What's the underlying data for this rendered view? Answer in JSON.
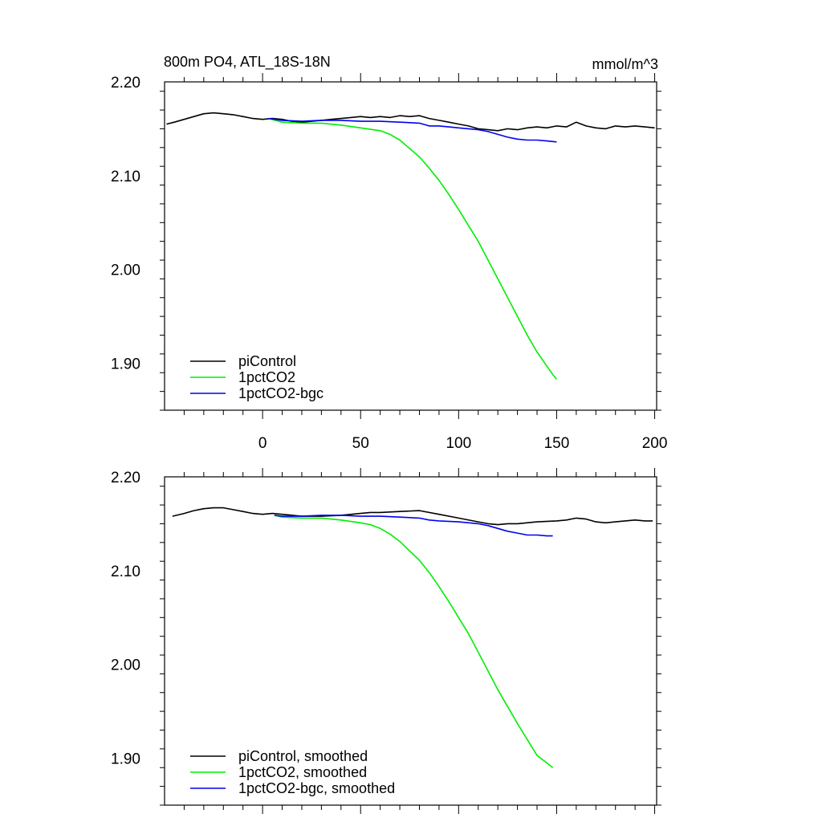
{
  "chart_data": [
    {
      "type": "line",
      "title": "800m PO4, ATL_18S-18N",
      "units": "mmol/m^3",
      "xlim": [
        -50,
        201
      ],
      "ylim": [
        1.85,
        2.2
      ],
      "x_ticks": [
        "0",
        "50",
        "100",
        "150",
        "200"
      ],
      "x_tick_values": [
        0,
        50,
        100,
        150,
        200
      ],
      "y_ticks": [
        "2.20",
        "2.10",
        "2.00",
        "1.90"
      ],
      "y_tick_values": [
        2.2,
        2.1,
        2.0,
        1.9
      ],
      "legend_position": "bottom-left",
      "series": [
        {
          "name": "piControl",
          "color": "#000000",
          "x": [
            -49,
            -45,
            -40,
            -35,
            -30,
            -25,
            -20,
            -15,
            -10,
            -5,
            0,
            5,
            10,
            15,
            20,
            25,
            30,
            35,
            40,
            45,
            50,
            55,
            60,
            65,
            70,
            75,
            80,
            85,
            90,
            95,
            100,
            105,
            110,
            115,
            120,
            125,
            130,
            135,
            140,
            145,
            150,
            155,
            160,
            165,
            170,
            175,
            180,
            185,
            190,
            195,
            200
          ],
          "y": [
            2.155,
            2.157,
            2.16,
            2.163,
            2.166,
            2.167,
            2.166,
            2.165,
            2.163,
            2.161,
            2.16,
            2.161,
            2.16,
            2.158,
            2.157,
            2.158,
            2.159,
            2.16,
            2.161,
            2.162,
            2.163,
            2.162,
            2.163,
            2.162,
            2.164,
            2.163,
            2.164,
            2.161,
            2.159,
            2.157,
            2.155,
            2.153,
            2.15,
            2.149,
            2.148,
            2.15,
            2.149,
            2.151,
            2.152,
            2.151,
            2.153,
            2.152,
            2.157,
            2.153,
            2.151,
            2.15,
            2.153,
            2.152,
            2.153,
            2.152,
            2.151
          ]
        },
        {
          "name": "1pctCO2",
          "color": "#00ee00",
          "x": [
            3,
            10,
            20,
            30,
            40,
            50,
            60,
            65,
            70,
            75,
            80,
            85,
            90,
            95,
            100,
            105,
            110,
            115,
            120,
            125,
            130,
            135,
            140,
            145,
            148,
            150
          ],
          "y": [
            2.161,
            2.157,
            2.156,
            2.156,
            2.154,
            2.151,
            2.148,
            2.144,
            2.138,
            2.129,
            2.12,
            2.108,
            2.095,
            2.08,
            2.064,
            2.047,
            2.03,
            2.01,
            1.99,
            1.97,
            1.95,
            1.93,
            1.912,
            1.897,
            1.888,
            1.883
          ]
        },
        {
          "name": "1pctCO2-bgc",
          "color": "#0000ee",
          "x": [
            3,
            10,
            20,
            30,
            40,
            50,
            60,
            70,
            80,
            85,
            90,
            95,
            100,
            105,
            110,
            115,
            120,
            125,
            130,
            135,
            140,
            145,
            150
          ],
          "y": [
            2.161,
            2.159,
            2.158,
            2.159,
            2.159,
            2.158,
            2.158,
            2.157,
            2.156,
            2.153,
            2.153,
            2.152,
            2.151,
            2.15,
            2.149,
            2.147,
            2.144,
            2.141,
            2.139,
            2.138,
            2.138,
            2.137,
            2.136
          ]
        }
      ]
    },
    {
      "type": "line",
      "title": "",
      "xlim": [
        -50,
        201
      ],
      "ylim": [
        1.85,
        2.2
      ],
      "x_tick_values": [
        0,
        50,
        100,
        150,
        200
      ],
      "y_ticks": [
        "2.20",
        "2.10",
        "2.00",
        "1.90"
      ],
      "y_tick_values": [
        2.2,
        2.1,
        2.0,
        1.9
      ],
      "legend_position": "bottom-left",
      "series": [
        {
          "name": "piControl, smoothed",
          "color": "#000000",
          "x": [
            -46,
            -40,
            -35,
            -30,
            -25,
            -20,
            -15,
            -10,
            -5,
            0,
            5,
            10,
            20,
            30,
            40,
            50,
            55,
            60,
            70,
            80,
            90,
            100,
            110,
            115,
            120,
            125,
            130,
            140,
            150,
            155,
            160,
            165,
            170,
            175,
            180,
            185,
            190,
            195,
            199
          ],
          "y": [
            2.158,
            2.161,
            2.164,
            2.166,
            2.167,
            2.167,
            2.165,
            2.163,
            2.161,
            2.16,
            2.161,
            2.16,
            2.158,
            2.158,
            2.159,
            2.161,
            2.162,
            2.162,
            2.163,
            2.164,
            2.16,
            2.156,
            2.152,
            2.15,
            2.149,
            2.15,
            2.15,
            2.152,
            2.153,
            2.154,
            2.156,
            2.155,
            2.152,
            2.151,
            2.152,
            2.153,
            2.154,
            2.153,
            2.153
          ]
        },
        {
          "name": "1pctCO2, smoothed",
          "color": "#00ee00",
          "x": [
            6,
            10,
            20,
            30,
            40,
            50,
            55,
            60,
            65,
            70,
            75,
            80,
            85,
            90,
            95,
            100,
            105,
            110,
            115,
            120,
            125,
            130,
            135,
            140,
            145,
            148
          ],
          "y": [
            2.159,
            2.157,
            2.156,
            2.156,
            2.154,
            2.151,
            2.149,
            2.145,
            2.139,
            2.131,
            2.121,
            2.111,
            2.098,
            2.083,
            2.067,
            2.05,
            2.033,
            2.013,
            1.993,
            1.973,
            1.955,
            1.937,
            1.92,
            1.903,
            1.895,
            1.89
          ]
        },
        {
          "name": "1pctCO2-bgc, smoothed",
          "color": "#0000ee",
          "x": [
            6,
            10,
            20,
            30,
            40,
            50,
            60,
            70,
            80,
            85,
            90,
            100,
            110,
            115,
            120,
            125,
            130,
            135,
            140,
            145,
            148
          ],
          "y": [
            2.159,
            2.158,
            2.158,
            2.159,
            2.159,
            2.158,
            2.158,
            2.157,
            2.156,
            2.154,
            2.153,
            2.152,
            2.15,
            2.148,
            2.145,
            2.142,
            2.14,
            2.138,
            2.138,
            2.137,
            2.137
          ]
        }
      ]
    }
  ]
}
